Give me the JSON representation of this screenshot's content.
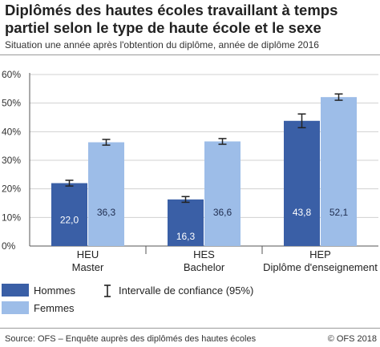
{
  "title": "Diplômés des hautes écoles travaillant à temps partiel selon le type de haute école et le sexe",
  "subtitle": "Situation une année après l'obtention du diplôme, année de diplôme 2016",
  "legend": {
    "hommes": "Hommes",
    "femmes": "Femmes",
    "ci": "Intervalle de confiance (95%)"
  },
  "source": "Source: OFS – Enquête auprès des diplômés des hautes écoles",
  "copyright": "© OFS 2018",
  "colors": {
    "hommes": "#3a5fa6",
    "femmes": "#9dbde8",
    "grid": "#d0d0d0",
    "axis": "#555555"
  },
  "chart_data": {
    "type": "bar",
    "categories": [
      [
        "HEU",
        "Master"
      ],
      [
        "HES",
        "Bachelor"
      ],
      [
        "HEP",
        "Diplôme d'enseignement"
      ]
    ],
    "series": [
      {
        "name": "Hommes",
        "values": [
          22.0,
          16.3,
          43.8
        ],
        "labels": [
          "22,0",
          "16,3",
          "43,8"
        ],
        "ci": [
          [
            21.0,
            23.0
          ],
          [
            15.3,
            17.3
          ],
          [
            41.4,
            46.2
          ]
        ]
      },
      {
        "name": "Femmes",
        "values": [
          36.3,
          36.6,
          52.1
        ],
        "labels": [
          "36,3",
          "36,6",
          "52,1"
        ],
        "ci": [
          [
            35.3,
            37.3
          ],
          [
            35.6,
            37.6
          ],
          [
            51.0,
            53.2
          ]
        ]
      }
    ],
    "ylim": [
      0,
      60
    ],
    "yticks": [
      "0%",
      "10%",
      "20%",
      "30%",
      "40%",
      "50%",
      "60%"
    ],
    "grid": true,
    "legend_position": "bottom-left"
  }
}
